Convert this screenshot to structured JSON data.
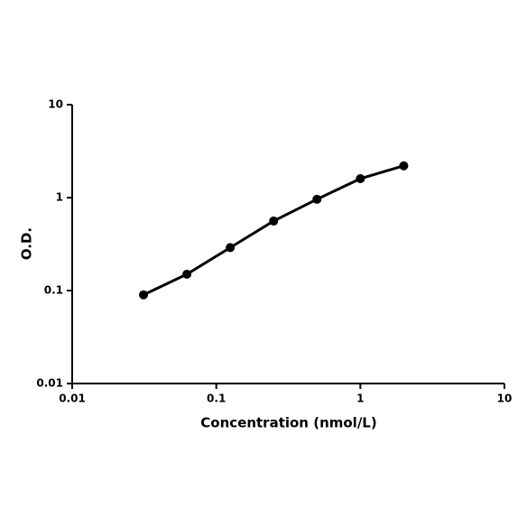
{
  "chart_data": {
    "type": "line",
    "x_label": "Concentration (nmol/L)",
    "y_label": "O.D.",
    "x": [
      0.03125,
      0.0625,
      0.125,
      0.25,
      0.5,
      1,
      2
    ],
    "series": [
      {
        "color": "#000000",
        "values": [
          0.09,
          0.15,
          0.29,
          0.56,
          0.96,
          1.6,
          2.2
        ]
      }
    ],
    "xlim": [
      0.01,
      10
    ],
    "xticks": [
      0.01,
      0.1,
      1,
      10
    ],
    "ylim": [
      0.01,
      10
    ],
    "yticks": [
      0.01,
      0.1,
      1,
      10
    ],
    "xscale": "log",
    "yscale": "log",
    "grid": false,
    "markers": true
  }
}
